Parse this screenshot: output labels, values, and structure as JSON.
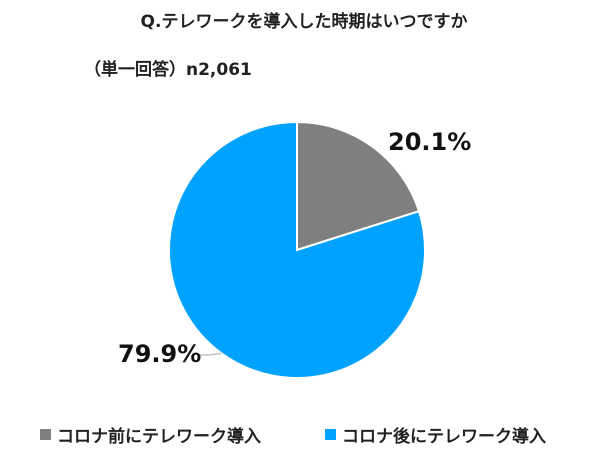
{
  "chart_data": {
    "type": "pie",
    "title": "Q.テレワークを導入した時期はいつですか",
    "subtitle": "（単一回答）n2,061",
    "legend_position": "bottom",
    "slices": [
      {
        "name": "コロナ前にテレワーク導入",
        "value": 20.1,
        "label": "20.1%",
        "color": "#7f7f7f"
      },
      {
        "name": "コロナ後にテレワーク導入",
        "value": 79.9,
        "label": "79.9%",
        "color": "#00a2ff"
      }
    ]
  }
}
